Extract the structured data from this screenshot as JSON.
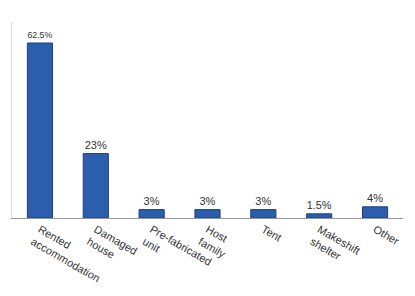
{
  "chart_data": {
    "type": "bar",
    "categories": [
      "Rented accommodation",
      "Damaged house",
      "Pre-fabricated unit",
      "Host family",
      "Tent",
      "Makeshift shelter",
      "Other"
    ],
    "values": [
      62.5,
      23,
      3,
      3,
      3,
      1.5,
      4
    ],
    "value_labels": [
      "62.5%",
      "23%",
      "3%",
      "3%",
      "3%",
      "1.5%",
      "4%"
    ],
    "color": "#2b5fae",
    "ylim": [
      0,
      70
    ],
    "grid": false,
    "data_labels": true,
    "tick_labels": "x"
  }
}
